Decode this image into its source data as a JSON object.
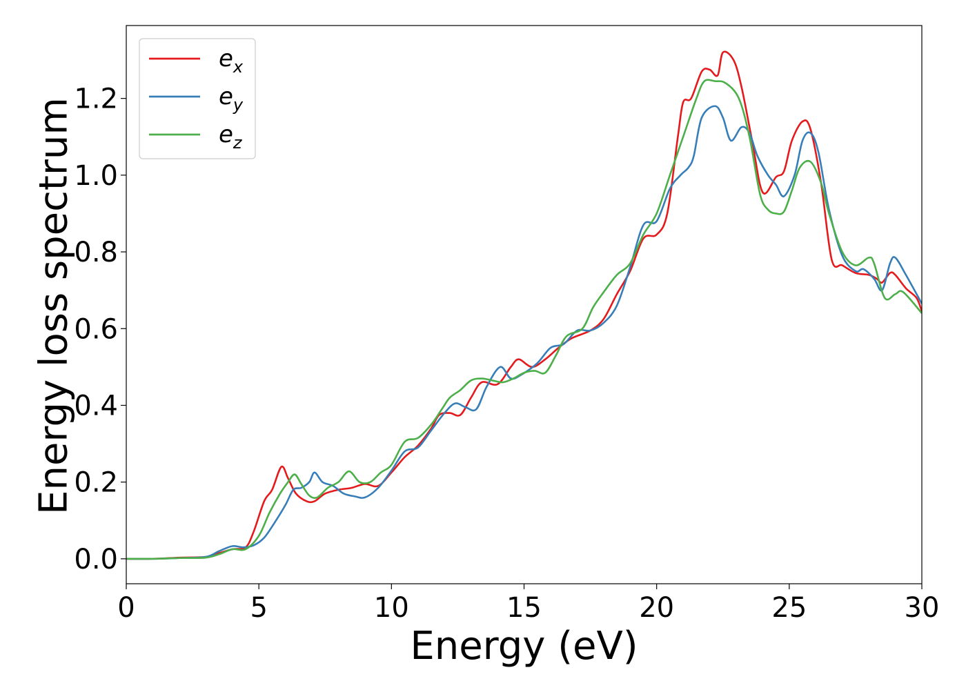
{
  "chart_data": {
    "type": "line",
    "title": "",
    "xlabel": "Energy (eV)",
    "ylabel": "Energy loss spectrum",
    "xlim": [
      0,
      30
    ],
    "ylim": [
      -0.065,
      1.39
    ],
    "xticks": [
      0,
      5,
      10,
      15,
      20,
      25,
      30
    ],
    "xtick_labels": [
      "0",
      "5",
      "10",
      "15",
      "20",
      "25",
      "30"
    ],
    "yticks": [
      0.0,
      0.2,
      0.4,
      0.6,
      0.8,
      1.0,
      1.2
    ],
    "ytick_labels": [
      "0.0",
      "0.2",
      "0.4",
      "0.6",
      "0.8",
      "1.0",
      "1.2"
    ],
    "grid": false,
    "legend": {
      "position": "top-left",
      "entries": [
        {
          "base": "e",
          "sub": "x",
          "color": "#e41a1c"
        },
        {
          "base": "e",
          "sub": "y",
          "color": "#377eb8"
        },
        {
          "base": "e",
          "sub": "z",
          "color": "#4daf4a"
        }
      ]
    },
    "series": [
      {
        "name": "e_x",
        "color": "#e41a1c",
        "points": [
          [
            0,
            0
          ],
          [
            1,
            0
          ],
          [
            2,
            0.003
          ],
          [
            3,
            0.005
          ],
          [
            3.5,
            0.015
          ],
          [
            4,
            0.025
          ],
          [
            4.5,
            0.03
          ],
          [
            4.8,
            0.07
          ],
          [
            5.2,
            0.15
          ],
          [
            5.5,
            0.18
          ],
          [
            5.85,
            0.24
          ],
          [
            6.1,
            0.21
          ],
          [
            6.4,
            0.17
          ],
          [
            6.8,
            0.15
          ],
          [
            7.1,
            0.15
          ],
          [
            7.5,
            0.17
          ],
          [
            8,
            0.18
          ],
          [
            8.5,
            0.185
          ],
          [
            9,
            0.195
          ],
          [
            9.5,
            0.19
          ],
          [
            10,
            0.225
          ],
          [
            10.5,
            0.265
          ],
          [
            11,
            0.295
          ],
          [
            11.5,
            0.34
          ],
          [
            11.8,
            0.375
          ],
          [
            12.2,
            0.38
          ],
          [
            12.6,
            0.375
          ],
          [
            13,
            0.42
          ],
          [
            13.4,
            0.46
          ],
          [
            14,
            0.455
          ],
          [
            14.5,
            0.5
          ],
          [
            14.8,
            0.52
          ],
          [
            15.3,
            0.5
          ],
          [
            15.8,
            0.52
          ],
          [
            16.3,
            0.55
          ],
          [
            16.8,
            0.575
          ],
          [
            17.5,
            0.595
          ],
          [
            18,
            0.625
          ],
          [
            18.5,
            0.69
          ],
          [
            19,
            0.75
          ],
          [
            19.5,
            0.835
          ],
          [
            20,
            0.845
          ],
          [
            20.4,
            0.9
          ],
          [
            20.8,
            1.1
          ],
          [
            21,
            1.19
          ],
          [
            21.3,
            1.2
          ],
          [
            21.7,
            1.27
          ],
          [
            22,
            1.275
          ],
          [
            22.3,
            1.26
          ],
          [
            22.5,
            1.32
          ],
          [
            22.9,
            1.3
          ],
          [
            23.2,
            1.23
          ],
          [
            23.6,
            1.09
          ],
          [
            24,
            0.955
          ],
          [
            24.5,
            0.995
          ],
          [
            24.8,
            1.01
          ],
          [
            25.1,
            1.09
          ],
          [
            25.5,
            1.14
          ],
          [
            25.8,
            1.12
          ],
          [
            26.2,
            0.98
          ],
          [
            26.6,
            0.78
          ],
          [
            27,
            0.765
          ],
          [
            27.5,
            0.745
          ],
          [
            28,
            0.74
          ],
          [
            28.3,
            0.73
          ],
          [
            28.5,
            0.72
          ],
          [
            28.8,
            0.745
          ],
          [
            29,
            0.74
          ],
          [
            29.4,
            0.705
          ],
          [
            29.8,
            0.68
          ],
          [
            30,
            0.645
          ]
        ]
      },
      {
        "name": "e_y",
        "color": "#377eb8",
        "points": [
          [
            0,
            0
          ],
          [
            1,
            0
          ],
          [
            2,
            0.002
          ],
          [
            3,
            0.005
          ],
          [
            3.5,
            0.02
          ],
          [
            4,
            0.033
          ],
          [
            4.4,
            0.03
          ],
          [
            4.8,
            0.035
          ],
          [
            5.2,
            0.055
          ],
          [
            5.6,
            0.095
          ],
          [
            6,
            0.14
          ],
          [
            6.3,
            0.18
          ],
          [
            6.6,
            0.185
          ],
          [
            6.9,
            0.2
          ],
          [
            7.1,
            0.225
          ],
          [
            7.4,
            0.2
          ],
          [
            7.8,
            0.19
          ],
          [
            8.2,
            0.17
          ],
          [
            8.6,
            0.163
          ],
          [
            9,
            0.16
          ],
          [
            9.5,
            0.185
          ],
          [
            10,
            0.23
          ],
          [
            10.5,
            0.28
          ],
          [
            11,
            0.29
          ],
          [
            11.5,
            0.335
          ],
          [
            12,
            0.38
          ],
          [
            12.4,
            0.405
          ],
          [
            12.8,
            0.395
          ],
          [
            13.2,
            0.39
          ],
          [
            13.6,
            0.45
          ],
          [
            14.1,
            0.5
          ],
          [
            14.5,
            0.47
          ],
          [
            14.9,
            0.48
          ],
          [
            15.5,
            0.51
          ],
          [
            16,
            0.55
          ],
          [
            16.5,
            0.56
          ],
          [
            17,
            0.595
          ],
          [
            17.5,
            0.595
          ],
          [
            18,
            0.615
          ],
          [
            18.5,
            0.66
          ],
          [
            19,
            0.76
          ],
          [
            19.5,
            0.87
          ],
          [
            20,
            0.88
          ],
          [
            20.5,
            0.965
          ],
          [
            20.9,
            1.0
          ],
          [
            21.2,
            1.02
          ],
          [
            21.4,
            1.05
          ],
          [
            21.7,
            1.15
          ],
          [
            22.2,
            1.18
          ],
          [
            22.5,
            1.15
          ],
          [
            22.8,
            1.09
          ],
          [
            23.2,
            1.125
          ],
          [
            23.5,
            1.11
          ],
          [
            23.8,
            1.05
          ],
          [
            24.2,
            1.0
          ],
          [
            24.5,
            0.975
          ],
          [
            24.8,
            0.945
          ],
          [
            25.2,
            1.0
          ],
          [
            25.5,
            1.09
          ],
          [
            25.8,
            1.11
          ],
          [
            26.1,
            1.06
          ],
          [
            26.5,
            0.91
          ],
          [
            27,
            0.79
          ],
          [
            27.5,
            0.75
          ],
          [
            27.8,
            0.755
          ],
          [
            28.2,
            0.73
          ],
          [
            28.5,
            0.7
          ],
          [
            28.8,
            0.77
          ],
          [
            29,
            0.785
          ],
          [
            29.4,
            0.74
          ],
          [
            30,
            0.665
          ]
        ]
      },
      {
        "name": "e_z",
        "color": "#4daf4a",
        "points": [
          [
            0,
            0
          ],
          [
            1,
            0
          ],
          [
            2,
            0.002
          ],
          [
            3,
            0.003
          ],
          [
            3.5,
            0.012
          ],
          [
            4,
            0.025
          ],
          [
            4.5,
            0.025
          ],
          [
            5,
            0.06
          ],
          [
            5.4,
            0.12
          ],
          [
            5.8,
            0.17
          ],
          [
            6.1,
            0.2
          ],
          [
            6.35,
            0.22
          ],
          [
            6.6,
            0.195
          ],
          [
            6.9,
            0.165
          ],
          [
            7.2,
            0.16
          ],
          [
            7.6,
            0.185
          ],
          [
            8,
            0.2
          ],
          [
            8.4,
            0.228
          ],
          [
            8.8,
            0.2
          ],
          [
            9.2,
            0.2
          ],
          [
            9.6,
            0.225
          ],
          [
            10,
            0.245
          ],
          [
            10.5,
            0.305
          ],
          [
            11,
            0.315
          ],
          [
            11.5,
            0.35
          ],
          [
            11.9,
            0.39
          ],
          [
            12.2,
            0.42
          ],
          [
            12.6,
            0.44
          ],
          [
            13,
            0.465
          ],
          [
            13.4,
            0.47
          ],
          [
            13.8,
            0.465
          ],
          [
            14.2,
            0.46
          ],
          [
            14.6,
            0.47
          ],
          [
            15,
            0.485
          ],
          [
            15.4,
            0.49
          ],
          [
            15.8,
            0.485
          ],
          [
            16.2,
            0.53
          ],
          [
            16.6,
            0.58
          ],
          [
            17.2,
            0.6
          ],
          [
            17.6,
            0.655
          ],
          [
            18,
            0.695
          ],
          [
            18.5,
            0.74
          ],
          [
            19,
            0.77
          ],
          [
            19.5,
            0.845
          ],
          [
            20,
            0.9
          ],
          [
            20.5,
            1.0
          ],
          [
            21,
            1.1
          ],
          [
            21.5,
            1.2
          ],
          [
            21.8,
            1.245
          ],
          [
            22.2,
            1.245
          ],
          [
            22.6,
            1.24
          ],
          [
            23.1,
            1.2
          ],
          [
            23.5,
            1.1
          ],
          [
            23.9,
            0.95
          ],
          [
            24.2,
            0.91
          ],
          [
            24.5,
            0.9
          ],
          [
            24.8,
            0.905
          ],
          [
            25.1,
            0.96
          ],
          [
            25.4,
            1.02
          ],
          [
            25.8,
            1.035
          ],
          [
            26.2,
            0.98
          ],
          [
            26.5,
            0.9
          ],
          [
            27,
            0.8
          ],
          [
            27.5,
            0.765
          ],
          [
            28,
            0.785
          ],
          [
            28.2,
            0.77
          ],
          [
            28.6,
            0.68
          ],
          [
            29,
            0.69
          ],
          [
            29.3,
            0.695
          ],
          [
            30,
            0.64
          ]
        ]
      }
    ]
  }
}
